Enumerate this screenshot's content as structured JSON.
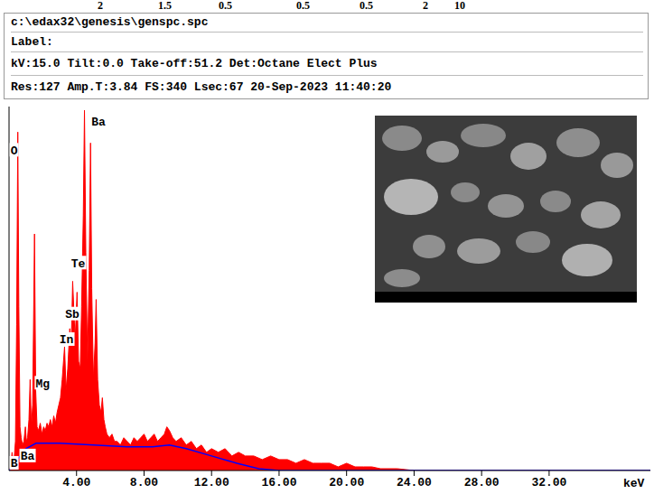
{
  "header": {
    "top_row": [
      2,
      1.5,
      0.5,
      0.5,
      0.5,
      2,
      10
    ],
    "lines": [
      "c:\\edax32\\genesis\\genspc.spc",
      "Label:",
      "kV:15.0 Tilt:0.0 Take-off:51.2 Det:Octane Elect Plus",
      "Res:127 Amp.T:3.84 FS:340 Lsec:67 20-Sep-2023 11:40:20"
    ]
  },
  "chart_data": {
    "type": "area",
    "x_label": "keV",
    "x": [
      0,
      0.1,
      0.18,
      0.24,
      0.3,
      0.38,
      0.45,
      0.52,
      0.58,
      0.65,
      0.72,
      0.8,
      0.88,
      0.97,
      1.03,
      1.1,
      1.18,
      1.25,
      1.32,
      1.4,
      1.51,
      1.58,
      1.66,
      1.75,
      1.85,
      1.95,
      2.05,
      2.15,
      2.25,
      2.35,
      2.45,
      2.55,
      2.65,
      2.75,
      2.85,
      2.95,
      3.05,
      3.15,
      3.29,
      3.38,
      3.48,
      3.6,
      3.68,
      3.77,
      3.84,
      3.92,
      4.03,
      4.12,
      4.22,
      4.3,
      4.4,
      4.47,
      4.55,
      4.65,
      4.75,
      4.83,
      4.9,
      5.0,
      5.1,
      5.16,
      5.25,
      5.35,
      5.45,
      5.53,
      5.62,
      5.7,
      5.8,
      5.95,
      6.1,
      6.25,
      6.4,
      6.6,
      6.8,
      7.0,
      7.2,
      7.4,
      7.6,
      7.8,
      8.0,
      8.2,
      8.4,
      8.6,
      8.8,
      9.0,
      9.2,
      9.35,
      9.5,
      9.7,
      9.9,
      10.2,
      10.5,
      10.8,
      11.1,
      11.4,
      11.7,
      12.0,
      12.4,
      12.8,
      13.2,
      13.6,
      14.0,
      14.5,
      15.0,
      15.5,
      16.0,
      16.5,
      17.0,
      17.5,
      18.0,
      18.5,
      19.0,
      19.5,
      20.0,
      20.5,
      21.0,
      21.5,
      22.0,
      23.0,
      24.0,
      38.0
    ],
    "series": [
      {
        "type": "area",
        "color": "#ff0000",
        "values": [
          0,
          1,
          5,
          2,
          3,
          8,
          40,
          93,
          45,
          12,
          9,
          7,
          8,
          12,
          8,
          9,
          14,
          25,
          12,
          18,
          65,
          22,
          12,
          11,
          13,
          10,
          12,
          11,
          13,
          12,
          14,
          12,
          15,
          13,
          16,
          18,
          20,
          25,
          34,
          22,
          28,
          39,
          33,
          52,
          44,
          36,
          49,
          30,
          28,
          45,
          70,
          99,
          60,
          30,
          55,
          90,
          50,
          25,
          35,
          47,
          25,
          18,
          16,
          20,
          14,
          12,
          10,
          9,
          10,
          8,
          8,
          7,
          9,
          8,
          7,
          9,
          8,
          9,
          10,
          8,
          9,
          10,
          8,
          9,
          10,
          12,
          11,
          9,
          8,
          9,
          7,
          8,
          6,
          7,
          5,
          6,
          5,
          6,
          4,
          5,
          4,
          4,
          3,
          4,
          3,
          3,
          2,
          3,
          2,
          2,
          2,
          1,
          2,
          1,
          1,
          1,
          0.5,
          0.5,
          0,
          0
        ]
      },
      {
        "type": "line",
        "color": "#0000ff",
        "x": [
          0,
          0.5,
          1.0,
          1.6,
          3.0,
          5.0,
          7.0,
          8.5,
          9.5,
          10.5,
          12.0,
          13.5,
          14.8,
          16.0,
          38.0
        ],
        "values": [
          0,
          3,
          6,
          7.5,
          7.5,
          7,
          6.5,
          6.5,
          7,
          6,
          4,
          2,
          0.5,
          0,
          0
        ]
      }
    ],
    "xlim": [
      0,
      38
    ],
    "xticks": [
      {
        "value": 4,
        "label": "4.00"
      },
      {
        "value": 8,
        "label": "8.00"
      },
      {
        "value": 12,
        "label": "12.00"
      },
      {
        "value": 16,
        "label": "16.00"
      },
      {
        "value": 20,
        "label": "20.00"
      },
      {
        "value": 24,
        "label": "24.00"
      },
      {
        "value": 28,
        "label": "28.00"
      },
      {
        "value": 32,
        "label": "32.00"
      }
    ],
    "ylim": [
      0,
      100
    ],
    "tick_labels": "x",
    "grid": false,
    "annotations": [
      {
        "text": "O",
        "x": 0.3,
        "y": 88
      },
      {
        "text": "Ba",
        "x": 5.3,
        "y": 96
      },
      {
        "text": "Te",
        "x": 4.1,
        "y": 57
      },
      {
        "text": "Sb",
        "x": 3.75,
        "y": 43
      },
      {
        "text": "In",
        "x": 3.4,
        "y": 36
      },
      {
        "text": "Mg",
        "x": 2.0,
        "y": 24
      },
      {
        "text": "Ba",
        "x": 1.1,
        "y": 4
      },
      {
        "text": "B",
        "x": 0.3,
        "y": 2
      }
    ]
  }
}
